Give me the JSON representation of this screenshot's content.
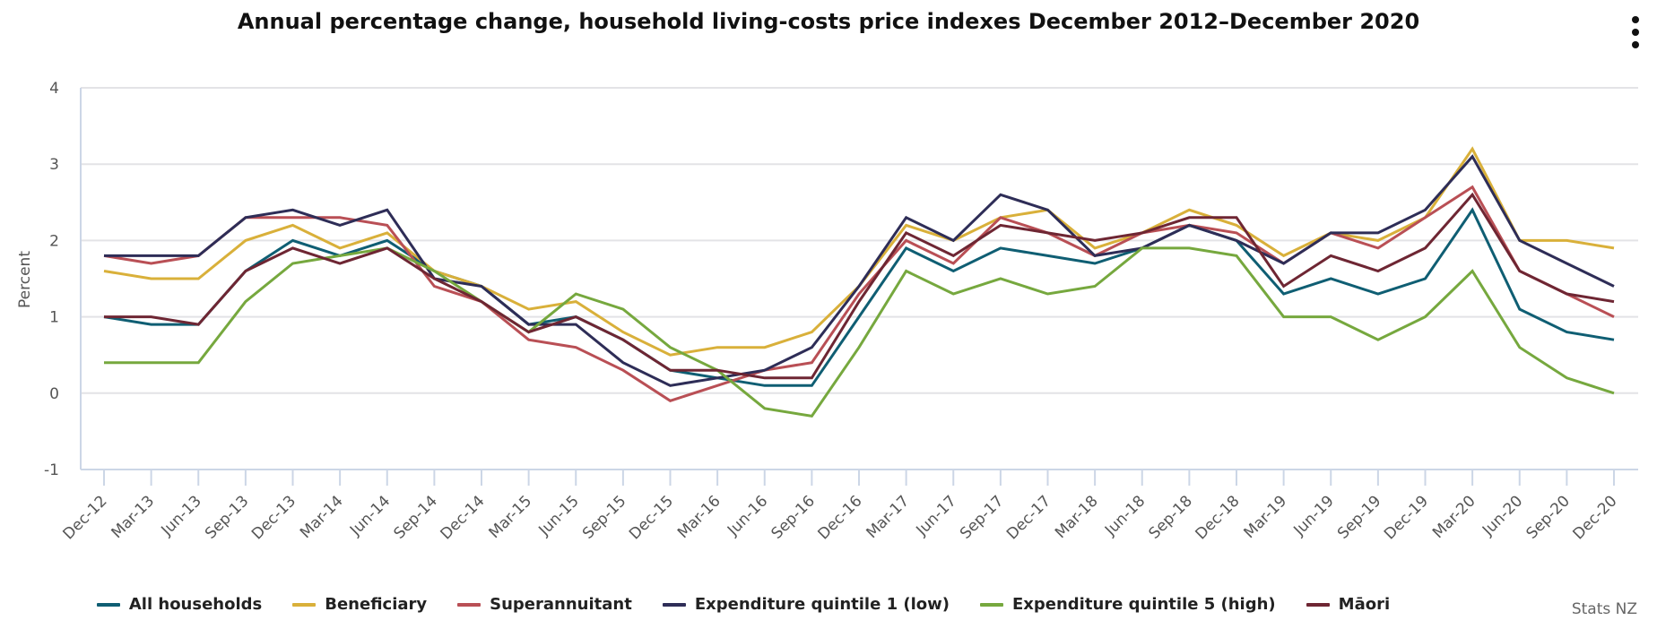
{
  "menu": {
    "icon": "kebab-menu-icon"
  },
  "credit": "Stats NZ",
  "chart_data": {
    "type": "line",
    "title": "Annual percentage change, household living-costs price indexes December 2012–December 2020",
    "xlabel": "",
    "ylabel": "Percent",
    "ylim": [
      -1,
      4
    ],
    "yticks": [
      -1,
      0,
      1,
      2,
      3,
      4
    ],
    "grid": true,
    "legend_position": "bottom",
    "categories": [
      "Dec-12",
      "Mar-13",
      "Jun-13",
      "Sep-13",
      "Dec-13",
      "Mar-14",
      "Jun-14",
      "Sep-14",
      "Dec-14",
      "Mar-15",
      "Jun-15",
      "Sep-15",
      "Dec-15",
      "Mar-16",
      "Jun-16",
      "Sep-16",
      "Dec-16",
      "Mar-17",
      "Jun-17",
      "Sep-17",
      "Dec-17",
      "Mar-18",
      "Jun-18",
      "Sep-18",
      "Dec-18",
      "Mar-19",
      "Jun-19",
      "Sep-19",
      "Dec-19",
      "Mar-20",
      "Jun-20",
      "Sep-20",
      "Dec-20"
    ],
    "series": [
      {
        "name": "All households",
        "color": "#0f5e73",
        "values": [
          1.0,
          0.9,
          0.9,
          1.6,
          2.0,
          1.8,
          2.0,
          1.6,
          1.4,
          0.9,
          1.0,
          0.7,
          0.3,
          0.2,
          0.1,
          0.1,
          1.0,
          1.9,
          1.6,
          1.9,
          1.8,
          1.7,
          1.9,
          2.2,
          2.0,
          1.3,
          1.5,
          1.3,
          1.5,
          2.4,
          1.1,
          0.8,
          0.7
        ]
      },
      {
        "name": "Beneficiary",
        "color": "#d9b03a",
        "values": [
          1.6,
          1.5,
          1.5,
          2.0,
          2.2,
          1.9,
          2.1,
          1.6,
          1.4,
          1.1,
          1.2,
          0.8,
          0.5,
          0.6,
          0.6,
          0.8,
          1.4,
          2.2,
          2.0,
          2.3,
          2.4,
          1.9,
          2.1,
          2.4,
          2.2,
          1.8,
          2.1,
          2.0,
          2.3,
          3.2,
          2.0,
          2.0,
          1.9
        ]
      },
      {
        "name": "Superannuitant",
        "color": "#b94f55",
        "values": [
          1.8,
          1.7,
          1.8,
          2.3,
          2.3,
          2.3,
          2.2,
          1.4,
          1.2,
          0.7,
          0.6,
          0.3,
          -0.1,
          0.1,
          0.3,
          0.4,
          1.3,
          2.0,
          1.7,
          2.3,
          2.1,
          1.8,
          2.1,
          2.2,
          2.1,
          1.7,
          2.1,
          1.9,
          2.3,
          2.7,
          1.6,
          1.3,
          1.0
        ]
      },
      {
        "name": "Expenditure quintile 1 (low)",
        "color": "#2e2d57",
        "values": [
          1.8,
          1.8,
          1.8,
          2.3,
          2.4,
          2.2,
          2.4,
          1.5,
          1.4,
          0.9,
          0.9,
          0.4,
          0.1,
          0.2,
          0.3,
          0.6,
          1.4,
          2.3,
          2.0,
          2.6,
          2.4,
          1.8,
          1.9,
          2.2,
          2.0,
          1.7,
          2.1,
          2.1,
          2.4,
          3.1,
          2.0,
          1.7,
          1.4
        ]
      },
      {
        "name": "Expenditure quintile 5 (high)",
        "color": "#76a83e",
        "values": [
          0.4,
          0.4,
          0.4,
          1.2,
          1.7,
          1.8,
          1.9,
          1.6,
          1.2,
          0.8,
          1.3,
          1.1,
          0.6,
          0.3,
          -0.2,
          -0.3,
          0.6,
          1.6,
          1.3,
          1.5,
          1.3,
          1.4,
          1.9,
          1.9,
          1.8,
          1.0,
          1.0,
          0.7,
          1.0,
          1.6,
          0.6,
          0.2,
          0.0
        ]
      },
      {
        "name": "Māori",
        "color": "#6e2633",
        "values": [
          1.0,
          1.0,
          0.9,
          1.6,
          1.9,
          1.7,
          1.9,
          1.5,
          1.2,
          0.8,
          1.0,
          0.7,
          0.3,
          0.3,
          0.2,
          0.2,
          1.2,
          2.1,
          1.8,
          2.2,
          2.1,
          2.0,
          2.1,
          2.3,
          2.3,
          1.4,
          1.8,
          1.6,
          1.9,
          2.6,
          1.6,
          1.3,
          1.2
        ]
      }
    ]
  }
}
